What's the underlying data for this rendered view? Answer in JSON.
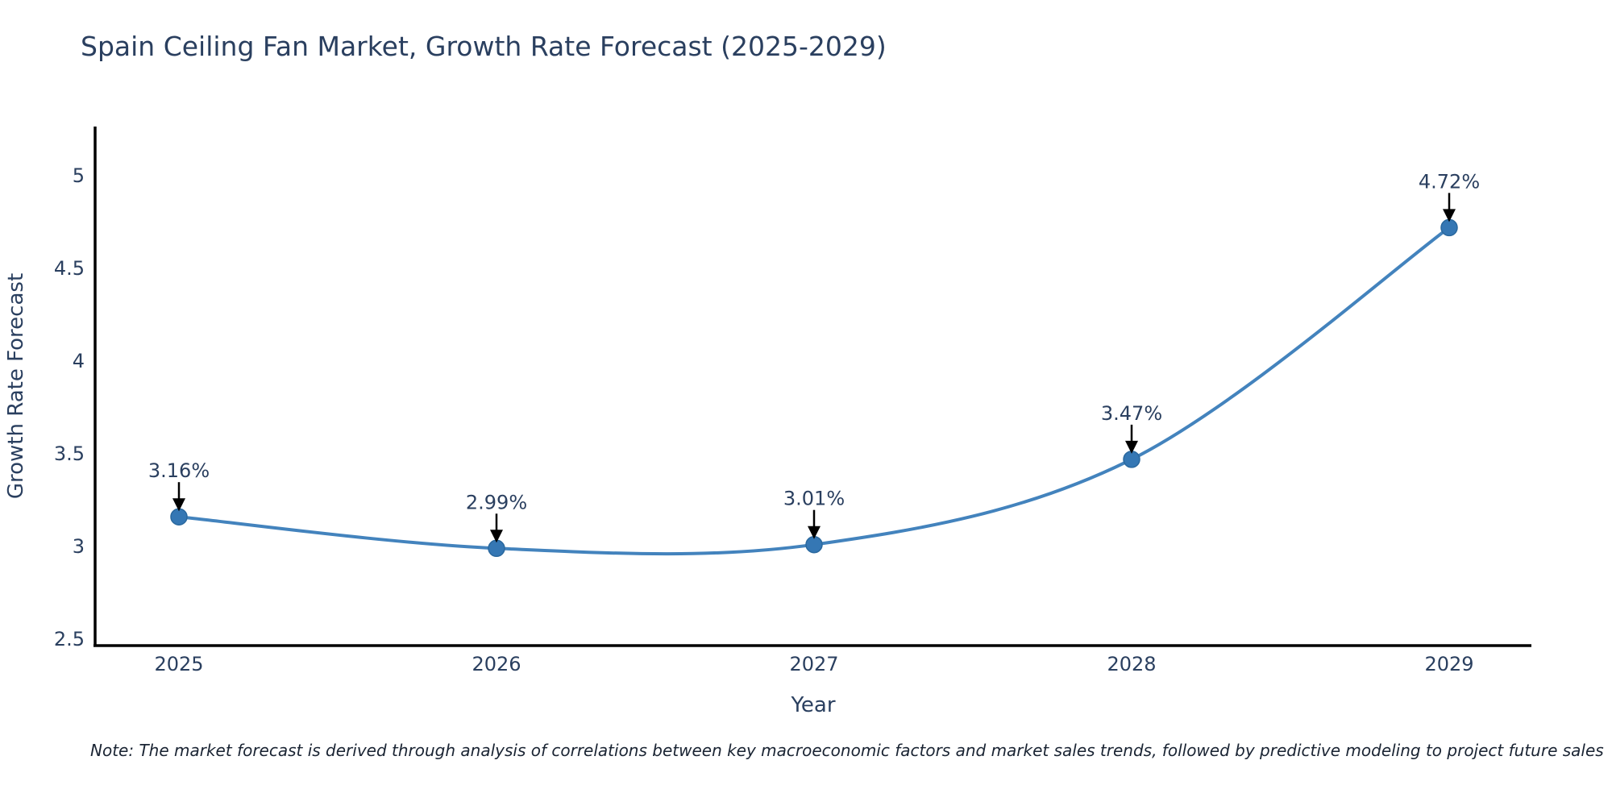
{
  "title": "Spain Ceiling Fan Market, Growth Rate Forecast (2025-2029)",
  "note": "Note: The market forecast is derived through analysis of correlations between key macroeconomic factors and market sales trends, followed by predictive modeling to project future sales",
  "chart_data": {
    "type": "line",
    "title": "Spain Ceiling Fan Market, Growth Rate Forecast (2025-2029)",
    "xlabel": "Year",
    "ylabel": "Growth Rate Forecast",
    "categories": [
      "2025",
      "2026",
      "2027",
      "2028",
      "2029"
    ],
    "series": [
      {
        "name": "Growth Rate Forecast",
        "values": [
          3.16,
          2.99,
          3.01,
          3.47,
          4.72
        ],
        "point_labels": [
          "3.16%",
          "2.99%",
          "3.01%",
          "3.47%",
          "4.72%"
        ]
      }
    ],
    "y_ticks": [
      2.5,
      3,
      3.5,
      4,
      4.5,
      5
    ],
    "ylim": [
      2.47,
      5.29
    ],
    "line_shape": "spline",
    "grid": false,
    "legend_position": "none",
    "colors": {
      "line": "#4383bd",
      "marker_fill": "#3577b4",
      "marker_edge": "#2a689e",
      "axis": "#000000",
      "tick_text": "#2a3f5f",
      "annotation_text": "#2a3f5f",
      "annotation_arrow": "#000000"
    }
  }
}
